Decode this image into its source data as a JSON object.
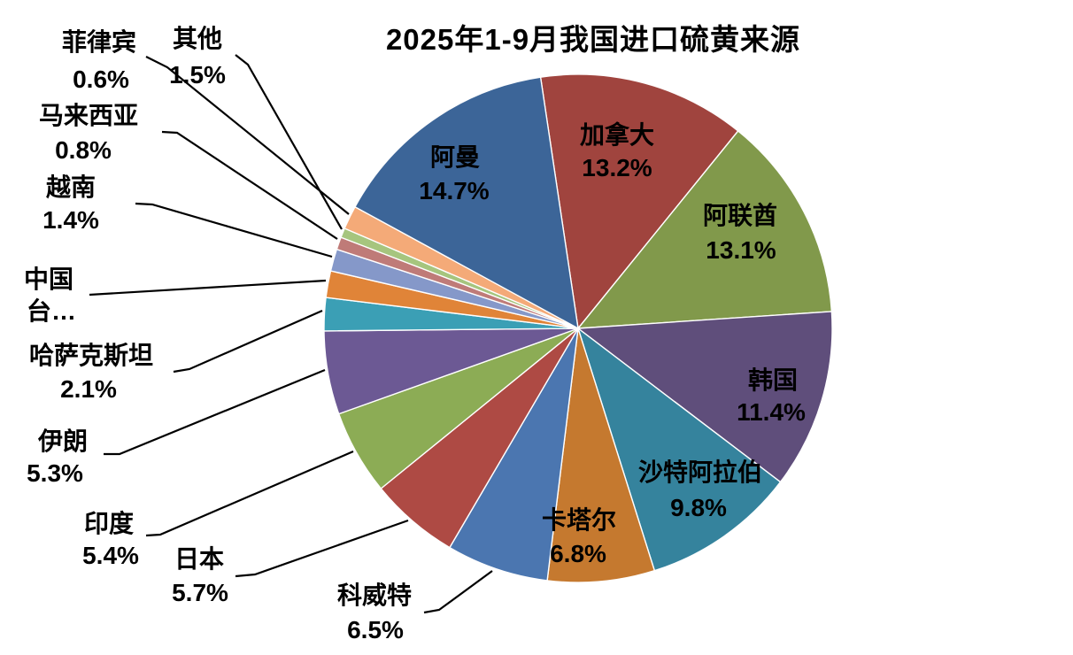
{
  "chart_data": {
    "type": "pie",
    "title": "2025年1-9月我国进口硫黄来源",
    "legend": "none",
    "start_angle_deg": -8.5,
    "units": "percent share",
    "slices": [
      {
        "id": "canada",
        "name": "加拿大",
        "value": 13.2,
        "pct_label": "13.2%",
        "color": "#A0443E",
        "placement": "inside"
      },
      {
        "id": "uae",
        "name": "阿联酋",
        "value": 13.1,
        "pct_label": "13.1%",
        "color": "#81994B",
        "placement": "inside"
      },
      {
        "id": "south-korea",
        "name": "韩国",
        "value": 11.4,
        "pct_label": "11.4%",
        "color": "#5F4E7B",
        "placement": "inside"
      },
      {
        "id": "saudi-arabia",
        "name": "沙特阿拉伯",
        "value": 9.8,
        "pct_label": "9.8%",
        "color": "#35839D",
        "placement": "inside"
      },
      {
        "id": "qatar",
        "name": "卡塔尔",
        "value": 6.8,
        "pct_label": "6.8%",
        "color": "#C5792F",
        "placement": "inside"
      },
      {
        "id": "kuwait",
        "name": "科威特",
        "value": 6.5,
        "pct_label": "6.5%",
        "color": "#4B76B0",
        "placement": "outside"
      },
      {
        "id": "japan",
        "name": "日本",
        "value": 5.7,
        "pct_label": "5.7%",
        "color": "#AE4A44",
        "placement": "outside"
      },
      {
        "id": "india",
        "name": "印度",
        "value": 5.4,
        "pct_label": "5.4%",
        "color": "#8CAC55",
        "placement": "outside"
      },
      {
        "id": "iran",
        "name": "伊朗",
        "value": 5.3,
        "pct_label": "5.3%",
        "color": "#6C5994",
        "placement": "outside"
      },
      {
        "id": "kazakhstan",
        "name": "哈萨克斯坦",
        "value": 2.1,
        "pct_label": "2.1%",
        "color": "#3B9FB5",
        "placement": "outside"
      },
      {
        "id": "taiwan-china",
        "name": "中国台湾",
        "value": 1.7,
        "value_estimated": true,
        "pct_label": "",
        "display_lines": [
          "中国",
          "台…"
        ],
        "color": "#E08438",
        "placement": "outside"
      },
      {
        "id": "vietnam",
        "name": "越南",
        "value": 1.4,
        "pct_label": "1.4%",
        "color": "#8598C9",
        "placement": "outside"
      },
      {
        "id": "malaysia",
        "name": "马来西亚",
        "value": 0.8,
        "pct_label": "0.8%",
        "color": "#BF7B78",
        "placement": "outside"
      },
      {
        "id": "philippines",
        "name": "菲律宾",
        "value": 0.6,
        "pct_label": "0.6%",
        "color": "#A6C57E",
        "placement": "outside"
      },
      {
        "id": "others",
        "name": "其他",
        "value": 1.5,
        "pct_label": "1.5%",
        "color": "#F4AA78",
        "placement": "outside"
      },
      {
        "id": "oman",
        "name": "阿曼",
        "value": 14.7,
        "pct_label": "14.7%",
        "color": "#3C6598",
        "placement": "inside"
      }
    ]
  }
}
